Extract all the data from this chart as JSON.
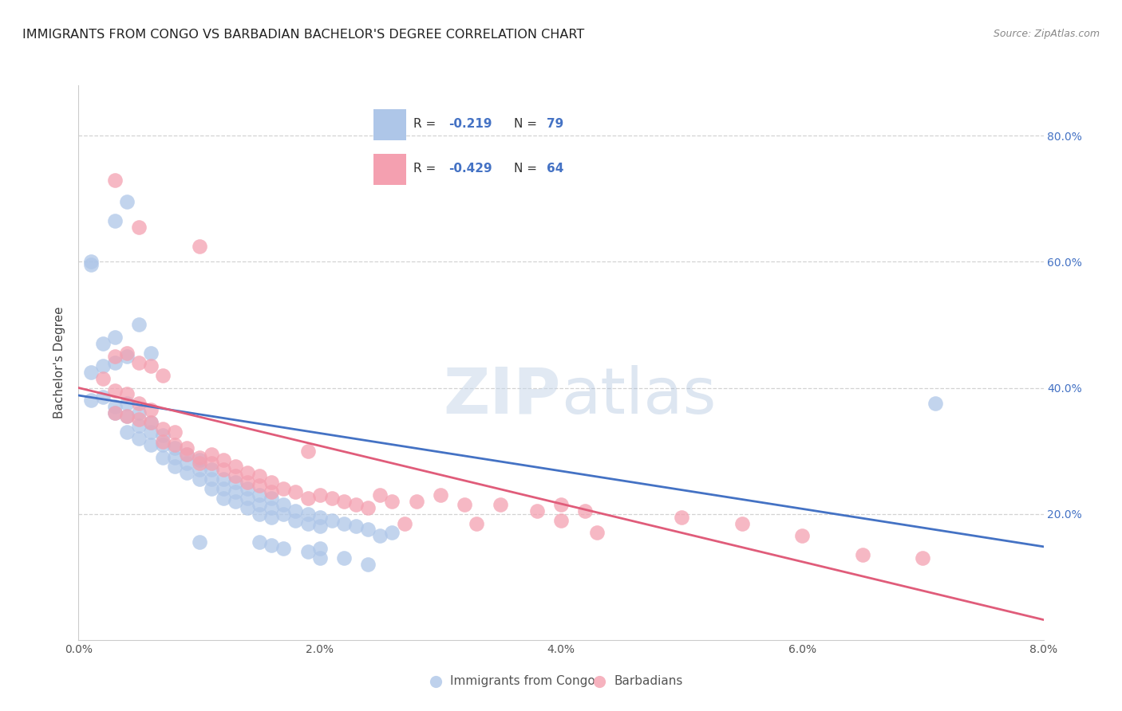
{
  "title": "IMMIGRANTS FROM CONGO VS BARBADIAN BACHELOR'S DEGREE CORRELATION CHART",
  "source": "Source: ZipAtlas.com",
  "ylabel": "Bachelor's Degree",
  "xlim": [
    0.0,
    0.08
  ],
  "ylim": [
    0.0,
    0.88
  ],
  "xticks": [
    0.0,
    0.02,
    0.04,
    0.06,
    0.08
  ],
  "xtick_labels": [
    "0.0%",
    "2.0%",
    "4.0%",
    "6.0%",
    "8.0%"
  ],
  "yticks": [
    0.2,
    0.4,
    0.6,
    0.8
  ],
  "ytick_labels": [
    "20.0%",
    "40.0%",
    "60.0%",
    "80.0%"
  ],
  "congo_R": -0.219,
  "congo_N": 79,
  "barb_R": -0.429,
  "barb_N": 64,
  "congo_color": "#aec6e8",
  "barb_color": "#f4a0b0",
  "line_congo_color": "#4472c4",
  "line_barb_color": "#e05c7a",
  "background_color": "#ffffff",
  "grid_color": "#c8c8c8",
  "congo_scatter": [
    [
      0.001,
      0.595
    ],
    [
      0.003,
      0.665
    ],
    [
      0.004,
      0.695
    ],
    [
      0.001,
      0.425
    ],
    [
      0.002,
      0.435
    ],
    [
      0.001,
      0.6
    ],
    [
      0.002,
      0.47
    ],
    [
      0.003,
      0.48
    ],
    [
      0.005,
      0.5
    ],
    [
      0.003,
      0.44
    ],
    [
      0.004,
      0.45
    ],
    [
      0.006,
      0.455
    ],
    [
      0.001,
      0.38
    ],
    [
      0.002,
      0.385
    ],
    [
      0.003,
      0.37
    ],
    [
      0.003,
      0.36
    ],
    [
      0.004,
      0.375
    ],
    [
      0.004,
      0.355
    ],
    [
      0.005,
      0.36
    ],
    [
      0.005,
      0.34
    ],
    [
      0.006,
      0.345
    ],
    [
      0.004,
      0.33
    ],
    [
      0.005,
      0.32
    ],
    [
      0.006,
      0.31
    ],
    [
      0.006,
      0.33
    ],
    [
      0.007,
      0.325
    ],
    [
      0.007,
      0.31
    ],
    [
      0.007,
      0.29
    ],
    [
      0.008,
      0.305
    ],
    [
      0.008,
      0.29
    ],
    [
      0.008,
      0.275
    ],
    [
      0.009,
      0.295
    ],
    [
      0.009,
      0.28
    ],
    [
      0.009,
      0.265
    ],
    [
      0.01,
      0.285
    ],
    [
      0.01,
      0.27
    ],
    [
      0.01,
      0.255
    ],
    [
      0.011,
      0.27
    ],
    [
      0.011,
      0.255
    ],
    [
      0.011,
      0.24
    ],
    [
      0.012,
      0.255
    ],
    [
      0.012,
      0.24
    ],
    [
      0.012,
      0.225
    ],
    [
      0.013,
      0.25
    ],
    [
      0.013,
      0.235
    ],
    [
      0.013,
      0.22
    ],
    [
      0.014,
      0.24
    ],
    [
      0.014,
      0.225
    ],
    [
      0.014,
      0.21
    ],
    [
      0.015,
      0.23
    ],
    [
      0.015,
      0.215
    ],
    [
      0.015,
      0.2
    ],
    [
      0.016,
      0.225
    ],
    [
      0.016,
      0.21
    ],
    [
      0.016,
      0.195
    ],
    [
      0.017,
      0.215
    ],
    [
      0.017,
      0.2
    ],
    [
      0.018,
      0.205
    ],
    [
      0.018,
      0.19
    ],
    [
      0.019,
      0.2
    ],
    [
      0.019,
      0.185
    ],
    [
      0.02,
      0.195
    ],
    [
      0.02,
      0.18
    ],
    [
      0.021,
      0.19
    ],
    [
      0.022,
      0.185
    ],
    [
      0.023,
      0.18
    ],
    [
      0.024,
      0.175
    ],
    [
      0.025,
      0.165
    ],
    [
      0.026,
      0.17
    ],
    [
      0.01,
      0.155
    ],
    [
      0.015,
      0.155
    ],
    [
      0.016,
      0.15
    ],
    [
      0.017,
      0.145
    ],
    [
      0.019,
      0.14
    ],
    [
      0.02,
      0.145
    ],
    [
      0.02,
      0.13
    ],
    [
      0.022,
      0.13
    ],
    [
      0.024,
      0.12
    ],
    [
      0.071,
      0.375
    ]
  ],
  "barb_scatter": [
    [
      0.003,
      0.73
    ],
    [
      0.005,
      0.655
    ],
    [
      0.003,
      0.45
    ],
    [
      0.004,
      0.455
    ],
    [
      0.005,
      0.44
    ],
    [
      0.006,
      0.435
    ],
    [
      0.007,
      0.42
    ],
    [
      0.002,
      0.415
    ],
    [
      0.003,
      0.395
    ],
    [
      0.004,
      0.39
    ],
    [
      0.005,
      0.375
    ],
    [
      0.006,
      0.365
    ],
    [
      0.003,
      0.36
    ],
    [
      0.004,
      0.355
    ],
    [
      0.005,
      0.35
    ],
    [
      0.006,
      0.345
    ],
    [
      0.007,
      0.335
    ],
    [
      0.008,
      0.33
    ],
    [
      0.007,
      0.315
    ],
    [
      0.008,
      0.31
    ],
    [
      0.009,
      0.305
    ],
    [
      0.009,
      0.295
    ],
    [
      0.01,
      0.29
    ],
    [
      0.01,
      0.28
    ],
    [
      0.011,
      0.295
    ],
    [
      0.011,
      0.28
    ],
    [
      0.012,
      0.285
    ],
    [
      0.012,
      0.27
    ],
    [
      0.013,
      0.275
    ],
    [
      0.013,
      0.26
    ],
    [
      0.014,
      0.265
    ],
    [
      0.014,
      0.25
    ],
    [
      0.015,
      0.26
    ],
    [
      0.015,
      0.245
    ],
    [
      0.016,
      0.25
    ],
    [
      0.016,
      0.235
    ],
    [
      0.017,
      0.24
    ],
    [
      0.018,
      0.235
    ],
    [
      0.019,
      0.3
    ],
    [
      0.019,
      0.225
    ],
    [
      0.02,
      0.23
    ],
    [
      0.021,
      0.225
    ],
    [
      0.022,
      0.22
    ],
    [
      0.023,
      0.215
    ],
    [
      0.024,
      0.21
    ],
    [
      0.025,
      0.23
    ],
    [
      0.026,
      0.22
    ],
    [
      0.028,
      0.22
    ],
    [
      0.03,
      0.23
    ],
    [
      0.032,
      0.215
    ],
    [
      0.035,
      0.215
    ],
    [
      0.038,
      0.205
    ],
    [
      0.04,
      0.215
    ],
    [
      0.042,
      0.205
    ],
    [
      0.027,
      0.185
    ],
    [
      0.033,
      0.185
    ],
    [
      0.04,
      0.19
    ],
    [
      0.01,
      0.625
    ],
    [
      0.043,
      0.17
    ],
    [
      0.05,
      0.195
    ],
    [
      0.055,
      0.185
    ],
    [
      0.06,
      0.165
    ],
    [
      0.065,
      0.135
    ],
    [
      0.07,
      0.13
    ]
  ],
  "congo_line": {
    "x0": 0.0,
    "y0": 0.388,
    "x1": 0.08,
    "y1": 0.148
  },
  "barb_line": {
    "x0": 0.0,
    "y0": 0.4,
    "x1": 0.08,
    "y1": 0.032
  }
}
